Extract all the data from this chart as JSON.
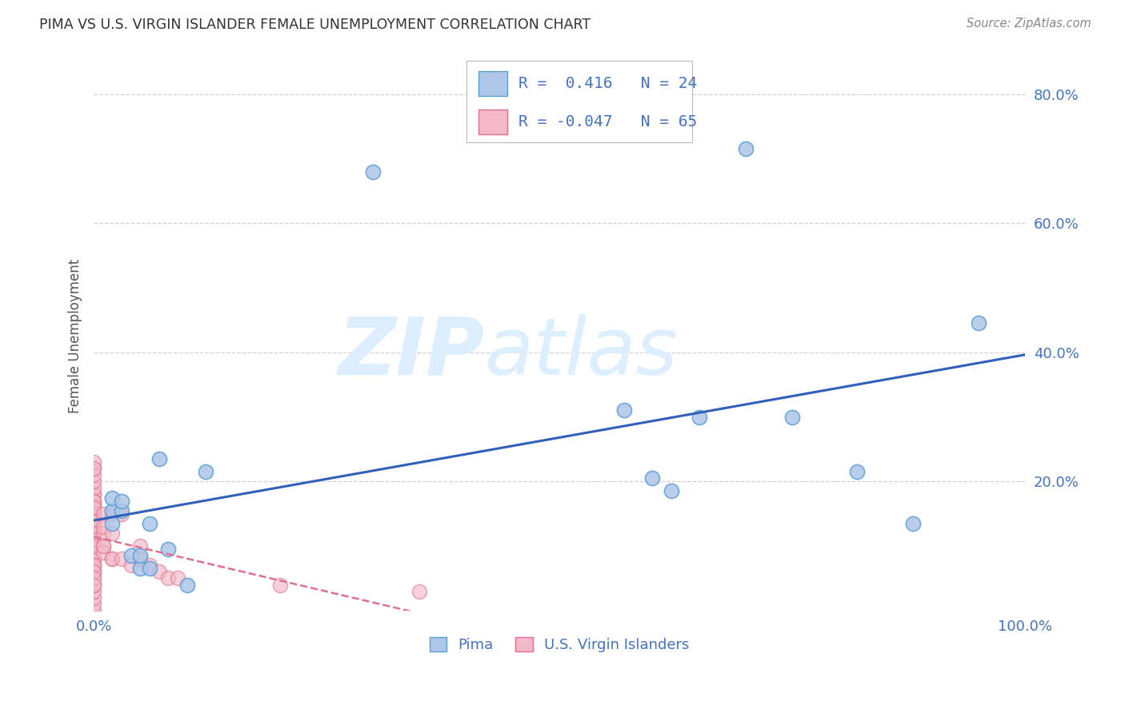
{
  "title": "PIMA VS U.S. VIRGIN ISLANDER FEMALE UNEMPLOYMENT CORRELATION CHART",
  "source": "Source: ZipAtlas.com",
  "ylabel": "Female Unemployment",
  "xlim": [
    0.0,
    1.0
  ],
  "ylim": [
    0.0,
    0.85
  ],
  "yticks": [
    0.2,
    0.4,
    0.6,
    0.8
  ],
  "ytick_labels": [
    "20.0%",
    "40.0%",
    "60.0%",
    "80.0%"
  ],
  "xtick_labels": [
    "0.0%",
    "100.0%"
  ],
  "xtick_pos": [
    0.0,
    1.0
  ],
  "background_color": "#ffffff",
  "grid_color": "#cccccc",
  "pima_color": "#aec6e8",
  "pima_edge_color": "#5a9fd4",
  "virgin_color": "#f4b8c8",
  "virgin_edge_color": "#e07090",
  "pima_line_color": "#3060bb",
  "virgin_line_color": "#e07090",
  "tick_color": "#4472c4",
  "watermark_color": "#ddeeff",
  "legend_R_pima": "0.416",
  "legend_N_pima": "24",
  "legend_R_virgin": "-0.047",
  "legend_N_virgin": "65",
  "pima_x": [
    0.02,
    0.02,
    0.03,
    0.04,
    0.05,
    0.05,
    0.06,
    0.07,
    0.08,
    0.1,
    0.12,
    0.57,
    0.6,
    0.62,
    0.65,
    0.7,
    0.75,
    0.82,
    0.88,
    0.95,
    0.3,
    0.02,
    0.03,
    0.06
  ],
  "pima_y": [
    0.155,
    0.175,
    0.155,
    0.085,
    0.065,
    0.085,
    0.065,
    0.235,
    0.095,
    0.04,
    0.215,
    0.31,
    0.205,
    0.185,
    0.3,
    0.715,
    0.3,
    0.215,
    0.135,
    0.445,
    0.68,
    0.135,
    0.17,
    0.135
  ],
  "virgin_x": [
    0.0,
    0.0,
    0.0,
    0.0,
    0.0,
    0.0,
    0.0,
    0.0,
    0.0,
    0.0,
    0.0,
    0.0,
    0.0,
    0.0,
    0.0,
    0.0,
    0.0,
    0.0,
    0.0,
    0.0,
    0.0,
    0.0,
    0.0,
    0.0,
    0.0,
    0.0,
    0.0,
    0.0,
    0.0,
    0.0,
    0.0,
    0.0,
    0.0,
    0.0,
    0.0,
    0.0,
    0.0,
    0.0,
    0.0,
    0.0,
    0.0,
    0.0,
    0.0,
    0.0,
    0.01,
    0.01,
    0.01,
    0.01,
    0.01,
    0.01,
    0.02,
    0.02,
    0.02,
    0.02,
    0.03,
    0.03,
    0.04,
    0.05,
    0.05,
    0.06,
    0.07,
    0.08,
    0.09,
    0.2,
    0.35
  ],
  "virgin_y": [
    0.0,
    0.01,
    0.02,
    0.03,
    0.04,
    0.05,
    0.06,
    0.06,
    0.07,
    0.07,
    0.08,
    0.08,
    0.09,
    0.1,
    0.11,
    0.12,
    0.13,
    0.14,
    0.15,
    0.16,
    0.17,
    0.18,
    0.18,
    0.19,
    0.2,
    0.21,
    0.22,
    0.23,
    0.17,
    0.16,
    0.15,
    0.14,
    0.13,
    0.14,
    0.07,
    0.06,
    0.05,
    0.04,
    0.12,
    0.11,
    0.1,
    0.22,
    0.17,
    0.16,
    0.1,
    0.09,
    0.12,
    0.15,
    0.1,
    0.13,
    0.08,
    0.15,
    0.12,
    0.08,
    0.15,
    0.08,
    0.07,
    0.1,
    0.08,
    0.07,
    0.06,
    0.05,
    0.05,
    0.04,
    0.03
  ]
}
